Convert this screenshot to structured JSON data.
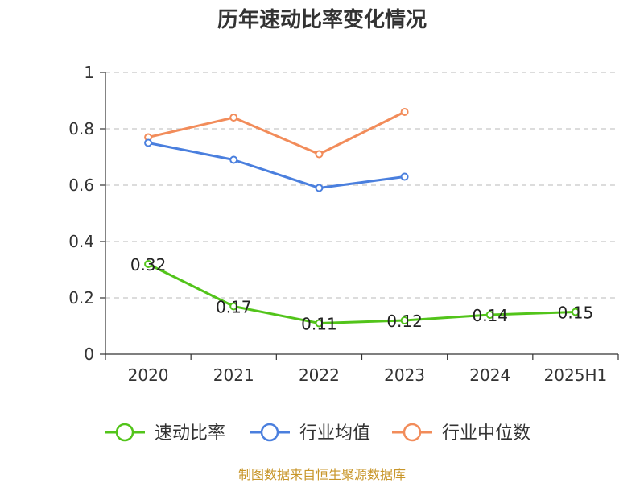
{
  "chart_data": {
    "type": "line",
    "title": "历年速动比率变化情况",
    "categories": [
      "2020",
      "2021",
      "2022",
      "2023",
      "2024",
      "2025H1"
    ],
    "ylim": [
      0,
      1
    ],
    "yticks": [
      "0",
      "0.2",
      "0.4",
      "0.6",
      "0.8",
      "1"
    ],
    "grid": true,
    "legend_position": "bottom",
    "series": [
      {
        "name": "速动比率",
        "color": "#52c41a",
        "values": [
          0.32,
          0.17,
          0.11,
          0.12,
          0.14,
          0.15
        ],
        "labels": [
          "0.32",
          "0.17",
          "0.11",
          "0.12",
          "0.14",
          "0.15"
        ]
      },
      {
        "name": "行业均值",
        "color": "#4a7fde",
        "values": [
          0.75,
          0.69,
          0.59,
          0.63,
          null,
          null
        ]
      },
      {
        "name": "行业中位数",
        "color": "#f28c5a",
        "values": [
          0.77,
          0.84,
          0.71,
          0.86,
          null,
          null
        ]
      }
    ]
  },
  "source": "制图数据来自恒生聚源数据库"
}
